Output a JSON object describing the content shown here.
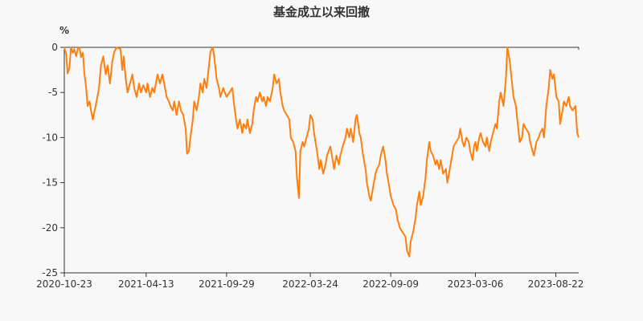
{
  "chart_data": {
    "type": "line",
    "title": "基金成立以来回撤",
    "y_unit": "%",
    "ylim": [
      -25,
      0
    ],
    "y_ticks": [
      0,
      -5,
      -10,
      -15,
      -20,
      -25
    ],
    "y_tick_labels": [
      "0",
      "-5",
      "-10",
      "-15",
      "-20",
      "-25"
    ],
    "x_range": [
      "2020-10-23",
      "2023-10-09"
    ],
    "x_ticks": [
      "2020-10-23",
      "2021-04-13",
      "2021-09-29",
      "2022-03-24",
      "2022-09-09",
      "2023-03-06",
      "2023-08-22"
    ],
    "grid": false,
    "legend": "none",
    "line_color": "#ff7f0e",
    "series": [
      {
        "points": [
          [
            "2020-10-23",
            0.0
          ],
          [
            "2020-10-27",
            -0.8
          ],
          [
            "2020-10-30",
            -2.9
          ],
          [
            "2020-11-03",
            -2.2
          ],
          [
            "2020-11-06",
            0.0
          ],
          [
            "2020-11-10",
            -0.6
          ],
          [
            "2020-11-13",
            -0.2
          ],
          [
            "2020-11-17",
            -1.0
          ],
          [
            "2020-11-20",
            -0.2
          ],
          [
            "2020-11-24",
            0.0
          ],
          [
            "2020-11-27",
            -1.1
          ],
          [
            "2020-12-01",
            -0.6
          ],
          [
            "2020-12-04",
            -2.8
          ],
          [
            "2020-12-08",
            -4.5
          ],
          [
            "2020-12-11",
            -6.5
          ],
          [
            "2020-12-15",
            -6.0
          ],
          [
            "2020-12-18",
            -7.0
          ],
          [
            "2020-12-22",
            -8.0
          ],
          [
            "2020-12-25",
            -7.2
          ],
          [
            "2020-12-29",
            -6.2
          ],
          [
            "2021-01-04",
            -4.5
          ],
          [
            "2021-01-08",
            -2.0
          ],
          [
            "2021-01-13",
            -1.0
          ],
          [
            "2021-01-18",
            -3.0
          ],
          [
            "2021-01-22",
            -2.0
          ],
          [
            "2021-01-27",
            -4.0
          ],
          [
            "2021-02-01",
            -1.5
          ],
          [
            "2021-02-05",
            -0.5
          ],
          [
            "2021-02-10",
            0.0
          ],
          [
            "2021-02-18",
            -0.2
          ],
          [
            "2021-02-22",
            -2.5
          ],
          [
            "2021-02-25",
            -1.0
          ],
          [
            "2021-03-01",
            -3.5
          ],
          [
            "2021-03-05",
            -5.0
          ],
          [
            "2021-03-10",
            -4.0
          ],
          [
            "2021-03-15",
            -3.0
          ],
          [
            "2021-03-19",
            -4.5
          ],
          [
            "2021-03-24",
            -5.5
          ],
          [
            "2021-03-29",
            -4.0
          ],
          [
            "2021-04-02",
            -5.0
          ],
          [
            "2021-04-07",
            -4.2
          ],
          [
            "2021-04-13",
            -5.0
          ],
          [
            "2021-04-16",
            -4.0
          ],
          [
            "2021-04-21",
            -5.5
          ],
          [
            "2021-04-26",
            -4.5
          ],
          [
            "2021-04-30",
            -5.0
          ],
          [
            "2021-05-07",
            -3.0
          ],
          [
            "2021-05-12",
            -4.0
          ],
          [
            "2021-05-17",
            -3.0
          ],
          [
            "2021-05-21",
            -4.0
          ],
          [
            "2021-05-26",
            -5.5
          ],
          [
            "2021-05-31",
            -6.0
          ],
          [
            "2021-06-03",
            -6.5
          ],
          [
            "2021-06-08",
            -7.0
          ],
          [
            "2021-06-11",
            -6.0
          ],
          [
            "2021-06-16",
            -7.5
          ],
          [
            "2021-06-21",
            -6.0
          ],
          [
            "2021-06-25",
            -7.0
          ],
          [
            "2021-06-30",
            -7.5
          ],
          [
            "2021-07-05",
            -9.0
          ],
          [
            "2021-07-08",
            -11.8
          ],
          [
            "2021-07-12",
            -11.5
          ],
          [
            "2021-07-15",
            -10.0
          ],
          [
            "2021-07-20",
            -8.0
          ],
          [
            "2021-07-23",
            -6.0
          ],
          [
            "2021-07-28",
            -7.0
          ],
          [
            "2021-08-02",
            -5.5
          ],
          [
            "2021-08-05",
            -4.0
          ],
          [
            "2021-08-10",
            -5.0
          ],
          [
            "2021-08-13",
            -3.5
          ],
          [
            "2021-08-18",
            -4.5
          ],
          [
            "2021-08-23",
            -2.0
          ],
          [
            "2021-08-26",
            -0.5
          ],
          [
            "2021-08-31",
            0.0
          ],
          [
            "2021-09-03",
            -1.0
          ],
          [
            "2021-09-08",
            -3.5
          ],
          [
            "2021-09-13",
            -4.5
          ],
          [
            "2021-09-16",
            -5.5
          ],
          [
            "2021-09-22",
            -4.5
          ],
          [
            "2021-09-29",
            -5.5
          ],
          [
            "2021-10-11",
            -4.5
          ],
          [
            "2021-10-14",
            -6.0
          ],
          [
            "2021-10-19",
            -8.0
          ],
          [
            "2021-10-22",
            -9.0
          ],
          [
            "2021-10-27",
            -8.0
          ],
          [
            "2021-11-01",
            -9.5
          ],
          [
            "2021-11-04",
            -8.5
          ],
          [
            "2021-11-09",
            -9.0
          ],
          [
            "2021-11-12",
            -8.0
          ],
          [
            "2021-11-17",
            -9.5
          ],
          [
            "2021-11-22",
            -8.5
          ],
          [
            "2021-11-25",
            -7.0
          ],
          [
            "2021-11-30",
            -5.5
          ],
          [
            "2021-12-03",
            -6.0
          ],
          [
            "2021-12-08",
            -5.0
          ],
          [
            "2021-12-13",
            -6.0
          ],
          [
            "2021-12-16",
            -5.5
          ],
          [
            "2021-12-21",
            -6.5
          ],
          [
            "2021-12-24",
            -5.5
          ],
          [
            "2021-12-29",
            -6.0
          ],
          [
            "2022-01-04",
            -4.5
          ],
          [
            "2022-01-07",
            -3.0
          ],
          [
            "2022-01-12",
            -4.0
          ],
          [
            "2022-01-17",
            -3.5
          ],
          [
            "2022-01-20",
            -5.0
          ],
          [
            "2022-01-25",
            -6.5
          ],
          [
            "2022-01-28",
            -7.0
          ],
          [
            "2022-02-08",
            -8.0
          ],
          [
            "2022-02-11",
            -10.0
          ],
          [
            "2022-02-16",
            -10.5
          ],
          [
            "2022-02-21",
            -11.5
          ],
          [
            "2022-02-24",
            -14.5
          ],
          [
            "2022-02-28",
            -16.7
          ],
          [
            "2022-03-03",
            -11.5
          ],
          [
            "2022-03-08",
            -10.5
          ],
          [
            "2022-03-11",
            -11.0
          ],
          [
            "2022-03-16",
            -10.0
          ],
          [
            "2022-03-21",
            -9.0
          ],
          [
            "2022-03-24",
            -7.5
          ],
          [
            "2022-03-29",
            -8.0
          ],
          [
            "2022-04-01",
            -9.5
          ],
          [
            "2022-04-07",
            -11.5
          ],
          [
            "2022-04-12",
            -13.5
          ],
          [
            "2022-04-15",
            -12.5
          ],
          [
            "2022-04-20",
            -14.0
          ],
          [
            "2022-04-25",
            -13.0
          ],
          [
            "2022-04-28",
            -12.0
          ],
          [
            "2022-05-05",
            -11.0
          ],
          [
            "2022-05-10",
            -12.5
          ],
          [
            "2022-05-13",
            -13.5
          ],
          [
            "2022-05-18",
            -12.0
          ],
          [
            "2022-05-23",
            -13.0
          ],
          [
            "2022-05-26",
            -12.0
          ],
          [
            "2022-05-31",
            -11.0
          ],
          [
            "2022-06-06",
            -10.0
          ],
          [
            "2022-06-09",
            -9.0
          ],
          [
            "2022-06-14",
            -10.0
          ],
          [
            "2022-06-17",
            -9.0
          ],
          [
            "2022-06-22",
            -10.5
          ],
          [
            "2022-06-27",
            -8.0
          ],
          [
            "2022-06-30",
            -7.5
          ],
          [
            "2022-07-05",
            -9.5
          ],
          [
            "2022-07-08",
            -10.0
          ],
          [
            "2022-07-13",
            -12.0
          ],
          [
            "2022-07-18",
            -13.5
          ],
          [
            "2022-07-21",
            -15.0
          ],
          [
            "2022-07-26",
            -16.5
          ],
          [
            "2022-07-29",
            -17.0
          ],
          [
            "2022-08-03",
            -15.5
          ],
          [
            "2022-08-08",
            -14.0
          ],
          [
            "2022-08-11",
            -13.5
          ],
          [
            "2022-08-16",
            -13.0
          ],
          [
            "2022-08-19",
            -12.0
          ],
          [
            "2022-08-24",
            -11.0
          ],
          [
            "2022-08-29",
            -12.5
          ],
          [
            "2022-09-01",
            -14.0
          ],
          [
            "2022-09-06",
            -15.5
          ],
          [
            "2022-09-09",
            -16.5
          ],
          [
            "2022-09-15",
            -17.5
          ],
          [
            "2022-09-20",
            -18.0
          ],
          [
            "2022-09-23",
            -19.0
          ],
          [
            "2022-09-28",
            -20.0
          ],
          [
            "2022-10-10",
            -21.0
          ],
          [
            "2022-10-13",
            -22.5
          ],
          [
            "2022-10-18",
            -23.2
          ],
          [
            "2022-10-21",
            -21.5
          ],
          [
            "2022-10-26",
            -20.5
          ],
          [
            "2022-10-31",
            -19.0
          ],
          [
            "2022-11-03",
            -17.5
          ],
          [
            "2022-11-08",
            -16.0
          ],
          [
            "2022-11-11",
            -17.5
          ],
          [
            "2022-11-16",
            -16.5
          ],
          [
            "2022-11-21",
            -14.5
          ],
          [
            "2022-11-24",
            -12.5
          ],
          [
            "2022-11-29",
            -10.5
          ],
          [
            "2022-12-02",
            -11.5
          ],
          [
            "2022-12-07",
            -12.0
          ],
          [
            "2022-12-12",
            -13.0
          ],
          [
            "2022-12-15",
            -12.5
          ],
          [
            "2022-12-20",
            -13.5
          ],
          [
            "2022-12-23",
            -12.5
          ],
          [
            "2022-12-28",
            -14.0
          ],
          [
            "2023-01-03",
            -13.5
          ],
          [
            "2023-01-06",
            -15.0
          ],
          [
            "2023-01-11",
            -13.5
          ],
          [
            "2023-01-16",
            -12.0
          ],
          [
            "2023-01-19",
            -11.0
          ],
          [
            "2023-01-30",
            -10.0
          ],
          [
            "2023-02-02",
            -9.0
          ],
          [
            "2023-02-07",
            -10.5
          ],
          [
            "2023-02-10",
            -11.0
          ],
          [
            "2023-02-15",
            -10.0
          ],
          [
            "2023-02-20",
            -10.5
          ],
          [
            "2023-02-23",
            -11.5
          ],
          [
            "2023-02-28",
            -12.5
          ],
          [
            "2023-03-03",
            -11.0
          ],
          [
            "2023-03-06",
            -10.5
          ],
          [
            "2023-03-09",
            -11.5
          ],
          [
            "2023-03-14",
            -10.0
          ],
          [
            "2023-03-17",
            -9.5
          ],
          [
            "2023-03-22",
            -10.5
          ],
          [
            "2023-03-27",
            -11.0
          ],
          [
            "2023-03-30",
            -10.0
          ],
          [
            "2023-04-04",
            -11.5
          ],
          [
            "2023-04-07",
            -10.5
          ],
          [
            "2023-04-12",
            -9.5
          ],
          [
            "2023-04-17",
            -8.5
          ],
          [
            "2023-04-20",
            -9.0
          ],
          [
            "2023-04-25",
            -6.0
          ],
          [
            "2023-04-28",
            -5.0
          ],
          [
            "2023-05-04",
            -6.5
          ],
          [
            "2023-05-09",
            -3.5
          ],
          [
            "2023-05-12",
            0.0
          ],
          [
            "2023-05-17",
            -1.5
          ],
          [
            "2023-05-22",
            -4.0
          ],
          [
            "2023-05-25",
            -5.5
          ],
          [
            "2023-05-30",
            -6.5
          ],
          [
            "2023-06-02",
            -8.0
          ],
          [
            "2023-06-07",
            -10.5
          ],
          [
            "2023-06-12",
            -10.0
          ],
          [
            "2023-06-15",
            -8.5
          ],
          [
            "2023-06-20",
            -9.0
          ],
          [
            "2023-06-26",
            -9.5
          ],
          [
            "2023-06-29",
            -10.5
          ],
          [
            "2023-07-04",
            -11.5
          ],
          [
            "2023-07-07",
            -12.0
          ],
          [
            "2023-07-12",
            -10.5
          ],
          [
            "2023-07-17",
            -10.0
          ],
          [
            "2023-07-20",
            -9.5
          ],
          [
            "2023-07-25",
            -9.0
          ],
          [
            "2023-07-28",
            -10.0
          ],
          [
            "2023-08-02",
            -6.5
          ],
          [
            "2023-08-07",
            -4.5
          ],
          [
            "2023-08-10",
            -2.5
          ],
          [
            "2023-08-15",
            -3.5
          ],
          [
            "2023-08-18",
            -3.0
          ],
          [
            "2023-08-23",
            -5.5
          ],
          [
            "2023-08-28",
            -6.0
          ],
          [
            "2023-08-31",
            -8.5
          ],
          [
            "2023-09-05",
            -7.0
          ],
          [
            "2023-09-08",
            -6.0
          ],
          [
            "2023-09-13",
            -6.5
          ],
          [
            "2023-09-18",
            -5.5
          ],
          [
            "2023-09-21",
            -6.5
          ],
          [
            "2023-09-26",
            -7.0
          ],
          [
            "2023-10-02",
            -6.5
          ],
          [
            "2023-10-04",
            -8.0
          ],
          [
            "2023-10-06",
            -9.5
          ],
          [
            "2023-10-09",
            -10.0
          ]
        ]
      }
    ]
  }
}
